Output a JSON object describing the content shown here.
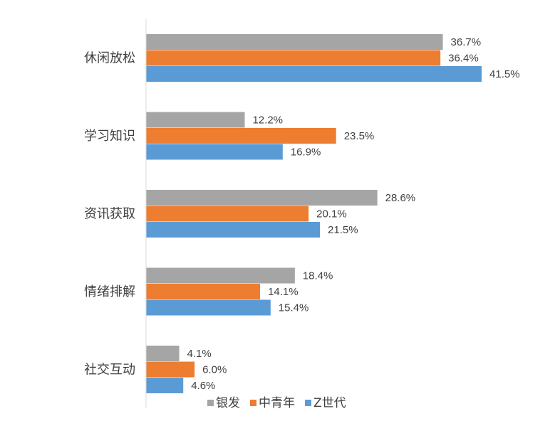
{
  "chart_data": {
    "type": "bar",
    "orientation": "horizontal",
    "categories": [
      "休闲放松",
      "学习知识",
      "资讯获取",
      "情绪排解",
      "社交互动"
    ],
    "series": [
      {
        "name": "银发",
        "color": "#A5A5A5",
        "values": [
          36.7,
          12.2,
          28.6,
          18.4,
          4.1
        ]
      },
      {
        "name": "中青年",
        "color": "#ED7D31",
        "values": [
          36.4,
          23.5,
          20.1,
          14.1,
          6.0
        ]
      },
      {
        "name": "Z世代",
        "color": "#5B9BD5",
        "values": [
          41.5,
          16.9,
          21.5,
          15.4,
          4.6
        ]
      }
    ],
    "value_suffix": "%",
    "value_decimals": 1,
    "xlim": [
      0,
      50
    ],
    "grid": false,
    "legend_position": "bottom"
  }
}
